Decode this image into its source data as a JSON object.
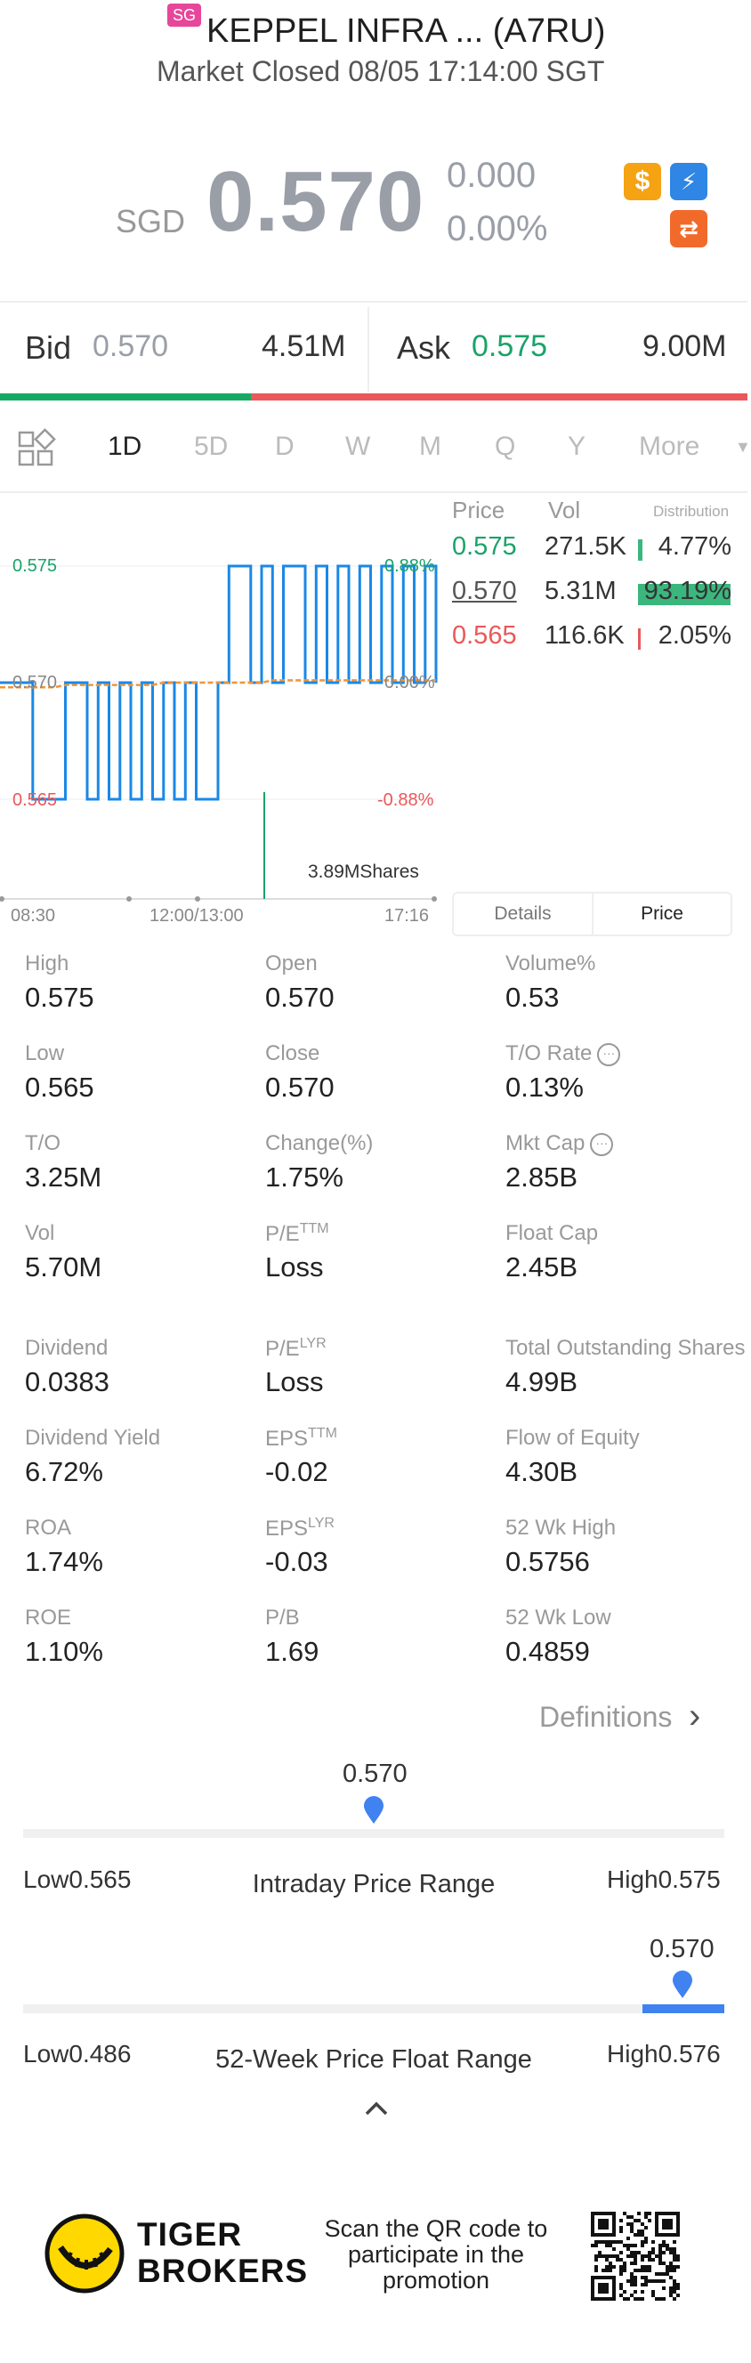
{
  "header": {
    "market_badge": "SG",
    "title": "KEPPEL INFRA ... (A7RU)",
    "status": "Market Closed 08/05 17:14:00 SGT"
  },
  "quote": {
    "currency": "SGD",
    "last_price": "0.570",
    "change": "0.000",
    "change_pct": "0.00%",
    "icons": [
      "dollar-icon",
      "flash-icon",
      "swap-icon"
    ]
  },
  "bid_ask": {
    "bid_label": "Bid",
    "bid_price": "0.570",
    "bid_size": "4.51M",
    "ask_label": "Ask",
    "ask_price": "0.575",
    "ask_size": "9.00M",
    "bid_share": 0.336
  },
  "tabs": [
    "1D",
    "5D",
    "D",
    "W",
    "M",
    "Q",
    "Y",
    "More"
  ],
  "active_tab": "1D",
  "chart": {
    "price_high_label": "0.575",
    "price_mid_label": "0.570",
    "price_low_label": "0.565",
    "pct_high_label": "0.88%",
    "pct_mid_label": "0.00%",
    "pct_low_label": "-0.88%",
    "shares_label": "3.89MShares",
    "time_start": "08:30",
    "time_mid": "12:00/13:00",
    "time_end": "17:16"
  },
  "chart_data": {
    "type": "line",
    "x_labels": [
      "08:30",
      "12:00/13:00",
      "17:16"
    ],
    "ylim": [
      0.565,
      0.575
    ],
    "series": [
      {
        "name": "",
        "values": [
          0.57,
          0.57,
          0.57,
          0.565,
          0.565,
          0.565,
          0.57,
          0.57,
          0.565,
          0.57,
          0.565,
          0.57,
          0.565,
          0.57,
          0.565,
          0.57,
          0.565,
          0.57,
          0.565,
          0.565,
          0.57,
          0.575,
          0.575,
          0.57,
          0.575,
          0.57,
          0.575,
          0.575,
          0.57,
          0.575,
          0.57,
          0.575,
          0.57,
          0.575,
          0.57,
          0.575,
          0.57,
          0.575,
          0.57,
          0.575,
          0.57
        ]
      },
      {
        "name": "",
        "values": [
          0.5698,
          0.5698,
          0.5698,
          0.5698,
          0.5698,
          0.5698,
          0.5699,
          0.5699,
          0.5699,
          0.5699,
          0.5699,
          0.5699,
          0.5699,
          0.5699,
          0.5699,
          0.57,
          0.57,
          0.57,
          0.57,
          0.57,
          0.57,
          0.57,
          0.57,
          0.57,
          0.57,
          0.5701,
          0.5701,
          0.5701,
          0.5701,
          0.5701,
          0.5701,
          0.5701,
          0.5701,
          0.5701,
          0.5701,
          0.5701,
          0.5701,
          0.5701,
          0.5701,
          0.5701,
          0.5701
        ]
      }
    ]
  },
  "distribution": {
    "headers": [
      "Price",
      "Vol",
      "Distribution"
    ],
    "rows": [
      {
        "price": "0.575",
        "vol": "271.5K",
        "pct": "4.77%",
        "share": 0.0477,
        "color": "#1aa368",
        "bar_color": "#3bb77e"
      },
      {
        "price": "0.570",
        "vol": "5.31M",
        "pct": "93.19%",
        "share": 0.9319,
        "color": "#555555",
        "bar_color": "#3bb77e"
      },
      {
        "price": "0.565",
        "vol": "116.6K",
        "pct": "2.05%",
        "share": 0.0205,
        "color": "#e9585a",
        "bar_color": "#e9585a"
      }
    ]
  },
  "toggle": {
    "details": "Details",
    "price": "Price"
  },
  "stats": [
    {
      "label": "High",
      "value": "0.575"
    },
    {
      "label": "Open",
      "value": "0.570"
    },
    {
      "label": "Volume%",
      "value": "0.53"
    },
    {
      "label": "Low",
      "value": "0.565"
    },
    {
      "label": "Close",
      "value": "0.570"
    },
    {
      "label": "T/O Rate",
      "value": "0.13%"
    },
    {
      "label": "T/O",
      "value": "3.25M"
    },
    {
      "label": "Change(%)",
      "value": "1.75%"
    },
    {
      "label": "Mkt Cap",
      "value": "2.85B"
    },
    {
      "label": "Vol",
      "value": "5.70M"
    },
    {
      "label": "P/E",
      "sup": "TTM",
      "value": "Loss"
    },
    {
      "label": "Float Cap",
      "value": "2.45B"
    },
    {
      "label": "Dividend",
      "value": "0.0383"
    },
    {
      "label": "P/E",
      "sup": "LYR",
      "value": "Loss"
    },
    {
      "label": "Total Outstanding Shares",
      "value": "4.99B"
    },
    {
      "label": "Dividend Yield",
      "value": "6.72%"
    },
    {
      "label": "EPS",
      "sup": "TTM",
      "value": "-0.02"
    },
    {
      "label": "Flow of Equity",
      "value": "4.30B"
    },
    {
      "label": "ROA",
      "value": "1.74%"
    },
    {
      "label": "EPS",
      "sup": "LYR",
      "value": "-0.03"
    },
    {
      "label": "52 Wk High",
      "value": "0.5756"
    },
    {
      "label": "ROE",
      "value": "1.10%"
    },
    {
      "label": "P/B",
      "value": "1.69"
    },
    {
      "label": "52 Wk Low",
      "value": "0.4859"
    }
  ],
  "definitions_label": "Definitions",
  "intraday_range": {
    "current": "0.570",
    "low": "Low0.565",
    "high": "High0.575",
    "title": "Intraday Price Range",
    "position": 0.5
  },
  "week52_range": {
    "current": "0.570",
    "low": "Low0.486",
    "high": "High0.576",
    "title": "52-Week Price Float Range",
    "position": 0.94
  },
  "promo": {
    "brand_line1": "TIGER",
    "brand_line2": "BROKERS",
    "text": "Scan the QR code to participate in the promotion"
  }
}
